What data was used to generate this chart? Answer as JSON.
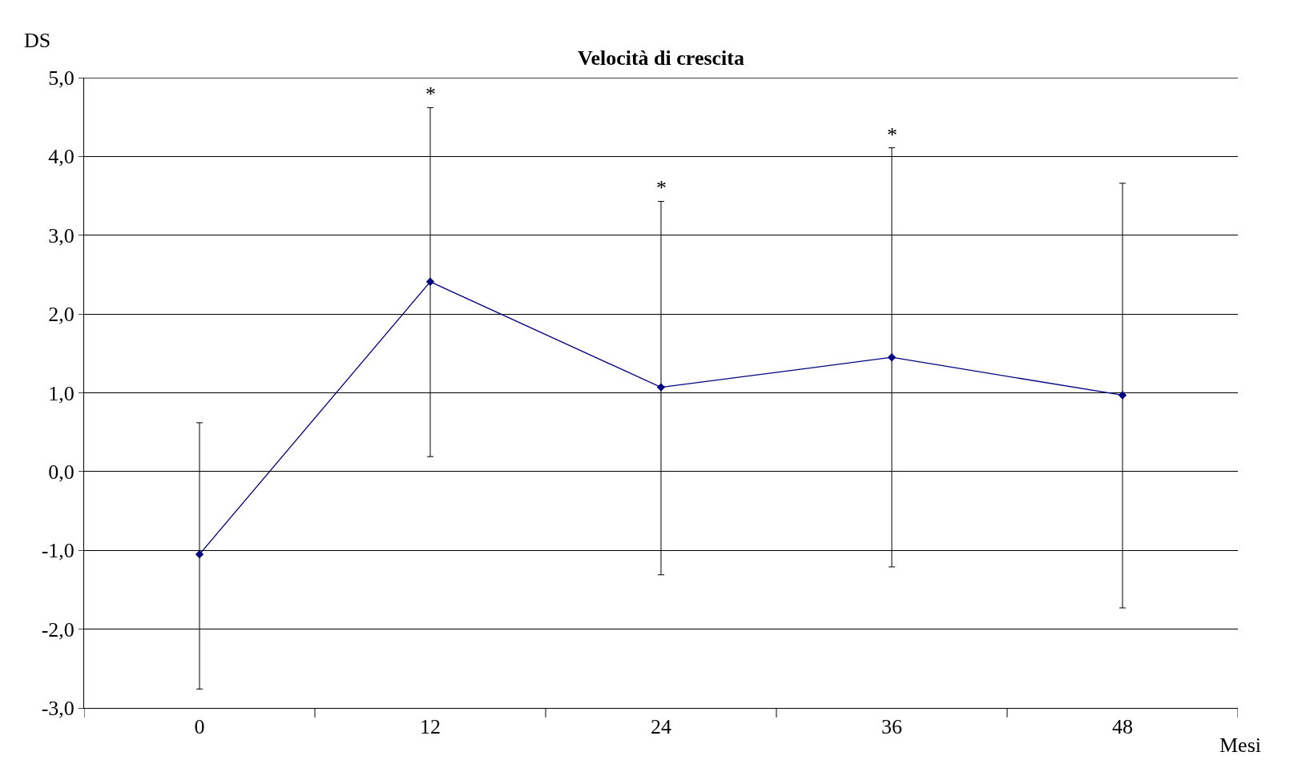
{
  "chart_data": {
    "type": "line",
    "title": "Velocità di crescita",
    "xlabel": "Mesi",
    "ylabel": "DS",
    "categories": [
      "0",
      "12",
      "24",
      "36",
      "48"
    ],
    "series": [
      {
        "color": "#000080",
        "values": [
          -1.05,
          2.41,
          1.07,
          1.45,
          0.97
        ],
        "errors": [
          [
            -2.76,
            0.62
          ],
          [
            0.19,
            4.62
          ],
          [
            -1.31,
            3.43
          ],
          [
            -1.21,
            4.11
          ],
          [
            -1.73,
            3.66
          ]
        ]
      }
    ],
    "ylim": [
      -3,
      5
    ],
    "yticks": [
      {
        "value": -3,
        "label": "-3,0"
      },
      {
        "value": -2,
        "label": "-2,0"
      },
      {
        "value": -1,
        "label": "-1,0"
      },
      {
        "value": 0,
        "label": "0,0"
      },
      {
        "value": 1,
        "label": "1,0"
      },
      {
        "value": 2,
        "label": "2,0"
      },
      {
        "value": 3,
        "label": "3,0"
      },
      {
        "value": 4,
        "label": "4,0"
      },
      {
        "value": 5,
        "label": "5,0"
      }
    ],
    "annotations": [
      {
        "text": "*",
        "x": "12",
        "y": 4.62
      },
      {
        "text": "*",
        "x": "24",
        "y": 3.43
      },
      {
        "text": "*",
        "x": "36",
        "y": 4.11
      }
    ],
    "grid": "y",
    "marker": "diamond",
    "line_style": "solid"
  }
}
